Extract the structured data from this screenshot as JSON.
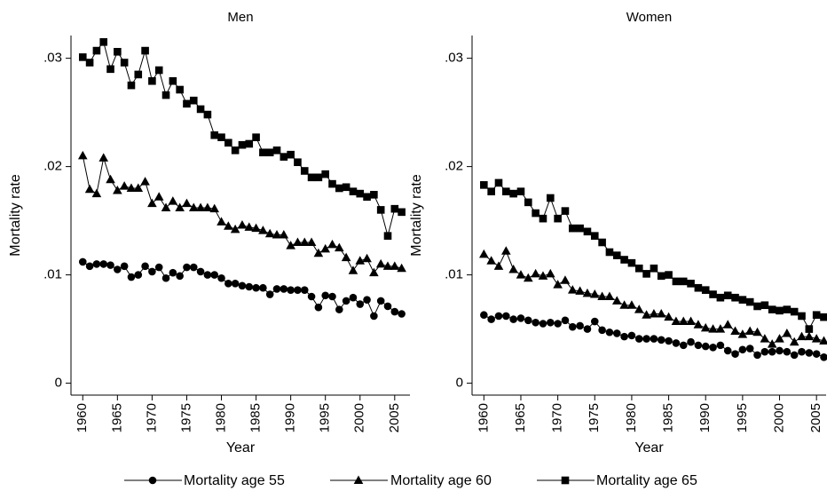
{
  "chart_data": [
    {
      "type": "line",
      "title": "Men",
      "xlabel": "Year",
      "ylabel": "Mortality rate",
      "x": [
        1960,
        1961,
        1962,
        1963,
        1964,
        1965,
        1966,
        1967,
        1968,
        1969,
        1970,
        1971,
        1972,
        1973,
        1974,
        1975,
        1976,
        1977,
        1978,
        1979,
        1980,
        1981,
        1982,
        1983,
        1984,
        1985,
        1986,
        1987,
        1988,
        1989,
        1990,
        1991,
        1992,
        1993,
        1994,
        1995,
        1996,
        1997,
        1998,
        1999,
        2000,
        2001,
        2002,
        2003,
        2004,
        2005,
        2006
      ],
      "xlim": [
        1958.3,
        2007.2
      ],
      "xticks": [
        1960,
        1965,
        1970,
        1975,
        1980,
        1985,
        1990,
        1995,
        2000,
        2005
      ],
      "ylim": [
        -0.0011,
        0.0321
      ],
      "yticks": [
        0,
        {
          "value": 0.01,
          "label": ".01"
        },
        {
          "value": 0.02,
          "label": ".02"
        },
        {
          "value": 0.03,
          "label": ".03"
        }
      ],
      "series": [
        {
          "name": "Mortality age 55",
          "color": "#000000",
          "marker": "circle",
          "values": [
            0.0112,
            0.0108,
            0.011,
            0.011,
            0.0109,
            0.0105,
            0.0108,
            0.0098,
            0.01,
            0.0108,
            0.0103,
            0.0107,
            0.0097,
            0.0102,
            0.0099,
            0.0107,
            0.0107,
            0.0103,
            0.01,
            0.01,
            0.0097,
            0.0092,
            0.0092,
            0.009,
            0.0089,
            0.0088,
            0.0088,
            0.0082,
            0.0087,
            0.0087,
            0.0086,
            0.0086,
            0.0086,
            0.008,
            0.007,
            0.0081,
            0.008,
            0.0068,
            0.0076,
            0.0079,
            0.0073,
            0.0077,
            0.0062,
            0.0076,
            0.0071,
            0.0066,
            0.0064
          ]
        },
        {
          "name": "Mortality age 60",
          "color": "#000000",
          "marker": "triangle",
          "values": [
            0.021,
            0.0179,
            0.0175,
            0.0208,
            0.0188,
            0.0178,
            0.0182,
            0.018,
            0.018,
            0.0186,
            0.0166,
            0.0172,
            0.0162,
            0.0168,
            0.0162,
            0.0166,
            0.0162,
            0.0162,
            0.0162,
            0.0161,
            0.0149,
            0.0145,
            0.0142,
            0.0146,
            0.0144,
            0.0143,
            0.0141,
            0.0138,
            0.0137,
            0.0137,
            0.0127,
            0.013,
            0.013,
            0.013,
            0.012,
            0.0124,
            0.0128,
            0.0125,
            0.0116,
            0.0104,
            0.0113,
            0.0115,
            0.0102,
            0.011,
            0.0108,
            0.0108,
            0.0106
          ]
        },
        {
          "name": "Mortality age 65",
          "color": "#000000",
          "marker": "square",
          "values": [
            0.0301,
            0.0296,
            0.0307,
            0.0315,
            0.029,
            0.0306,
            0.0296,
            0.0275,
            0.0285,
            0.0307,
            0.0279,
            0.0289,
            0.0266,
            0.0279,
            0.0271,
            0.0258,
            0.0261,
            0.0253,
            0.0248,
            0.0229,
            0.0227,
            0.0222,
            0.0215,
            0.022,
            0.0221,
            0.0227,
            0.0213,
            0.0213,
            0.0215,
            0.0209,
            0.0211,
            0.0204,
            0.0196,
            0.019,
            0.019,
            0.0193,
            0.0184,
            0.018,
            0.0181,
            0.0177,
            0.0175,
            0.0172,
            0.0174,
            0.016,
            0.0136,
            0.0161,
            0.0158
          ]
        }
      ]
    },
    {
      "type": "line",
      "title": "Women",
      "xlabel": "Year",
      "ylabel": "Mortality rate",
      "x": [
        1960,
        1961,
        1962,
        1963,
        1964,
        1965,
        1966,
        1967,
        1968,
        1969,
        1970,
        1971,
        1972,
        1973,
        1974,
        1975,
        1976,
        1977,
        1978,
        1979,
        1980,
        1981,
        1982,
        1983,
        1984,
        1985,
        1986,
        1987,
        1988,
        1989,
        1990,
        1991,
        1992,
        1993,
        1994,
        1995,
        1996,
        1997,
        1998,
        1999,
        2000,
        2001,
        2002,
        2003,
        2004,
        2005,
        2006
      ],
      "xlim": [
        1958.4,
        2006.3
      ],
      "xticks": [
        1960,
        1965,
        1970,
        1975,
        1980,
        1985,
        1990,
        1995,
        2000,
        2005
      ],
      "ylim": [
        -0.0011,
        0.0321
      ],
      "yticks": [
        0,
        {
          "value": 0.01,
          "label": ".01"
        },
        {
          "value": 0.02,
          "label": ".02"
        },
        {
          "value": 0.03,
          "label": ".03"
        }
      ],
      "series": [
        {
          "color": "#000000",
          "marker": "circle",
          "values": [
            0.0063,
            0.0059,
            0.0062,
            0.0062,
            0.0059,
            0.006,
            0.0058,
            0.0056,
            0.0055,
            0.0056,
            0.0055,
            0.0058,
            0.0052,
            0.0053,
            0.005,
            0.0057,
            0.0049,
            0.0047,
            0.0046,
            0.0043,
            0.0044,
            0.0041,
            0.0041,
            0.0041,
            0.004,
            0.0039,
            0.0037,
            0.0035,
            0.0038,
            0.0035,
            0.0034,
            0.0033,
            0.0035,
            0.003,
            0.0027,
            0.0031,
            0.0032,
            0.0026,
            0.0029,
            0.0029,
            0.003,
            0.0029,
            0.0026,
            0.0029,
            0.0028,
            0.0027,
            0.0024
          ]
        },
        {
          "color": "#000000",
          "marker": "triangle",
          "values": [
            0.0119,
            0.0113,
            0.0108,
            0.0122,
            0.0105,
            0.01,
            0.0097,
            0.0101,
            0.0099,
            0.0101,
            0.0091,
            0.0095,
            0.0086,
            0.0085,
            0.0083,
            0.0082,
            0.008,
            0.008,
            0.0076,
            0.0072,
            0.0072,
            0.0068,
            0.0063,
            0.0064,
            0.0064,
            0.0061,
            0.0057,
            0.0057,
            0.0057,
            0.0054,
            0.0051,
            0.005,
            0.005,
            0.0054,
            0.0048,
            0.0045,
            0.0048,
            0.0047,
            0.0041,
            0.0036,
            0.0041,
            0.0046,
            0.0038,
            0.0043,
            0.0043,
            0.0041,
            0.0039
          ]
        },
        {
          "color": "#000000",
          "marker": "square",
          "values": [
            0.0183,
            0.0177,
            0.0185,
            0.0177,
            0.0175,
            0.0177,
            0.0167,
            0.0157,
            0.0152,
            0.0171,
            0.0152,
            0.0159,
            0.0143,
            0.0143,
            0.014,
            0.0136,
            0.013,
            0.0121,
            0.0118,
            0.0114,
            0.0111,
            0.0106,
            0.0101,
            0.0106,
            0.0099,
            0.01,
            0.0094,
            0.0094,
            0.0092,
            0.0088,
            0.0086,
            0.0082,
            0.0079,
            0.0081,
            0.0079,
            0.0077,
            0.0075,
            0.0071,
            0.0072,
            0.0068,
            0.0067,
            0.0068,
            0.0066,
            0.0062,
            0.005,
            0.0063,
            0.0061
          ]
        }
      ]
    }
  ]
}
